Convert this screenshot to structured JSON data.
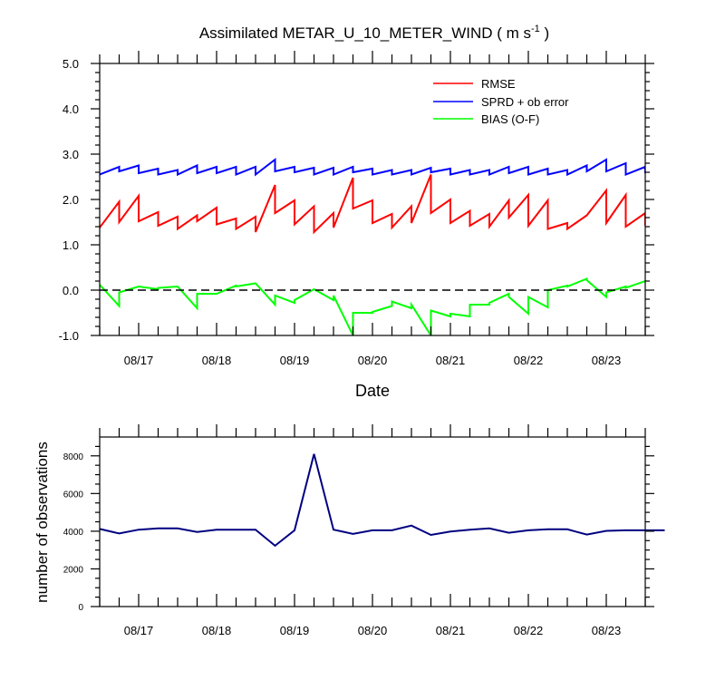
{
  "chart_data": [
    {
      "type": "line",
      "title_main": "Assimilated METAR_U_10_METER_WIND ( m s",
      "title_sup": "-1",
      "title_end": " )",
      "xlabel": "Date",
      "ylabel": "",
      "ylim": [
        -1.0,
        5.0
      ],
      "yticks": [
        "5.0",
        "4.0",
        "3.0",
        "2.0",
        "1.0",
        "0.0",
        "-1.0"
      ],
      "xlim": [
        "08/16 12:00",
        "08/23 18:00"
      ],
      "xtick_labels": [
        "08/17",
        "08/18",
        "08/19",
        "08/20",
        "08/21",
        "08/22",
        "08/23"
      ],
      "x": [
        "08/16 12:00",
        "08/16 18:00",
        "08/17 00:00",
        "08/17 06:00",
        "08/17 12:00",
        "08/17 18:00",
        "08/18 00:00",
        "08/18 06:00",
        "08/18 12:00",
        "08/18 18:00",
        "08/19 00:00",
        "08/19 06:00",
        "08/19 12:00",
        "08/19 18:00",
        "08/20 00:00",
        "08/20 06:00",
        "08/20 12:00",
        "08/20 18:00",
        "08/21 00:00",
        "08/21 06:00",
        "08/21 12:00",
        "08/21 18:00",
        "08/22 00:00",
        "08/22 06:00",
        "08/22 12:00",
        "08/22 18:00",
        "08/23 00:00",
        "08/23 06:00",
        "08/23 12:00"
      ],
      "reference_line": {
        "y": 0.0,
        "style": "dashed"
      },
      "legend_position": "top-right",
      "series": [
        {
          "name": "RMSE",
          "color": "#ff0000",
          "values_start": [
            1.38,
            1.5,
            1.52,
            1.42,
            1.35,
            1.52,
            1.45,
            1.35,
            1.28,
            1.7,
            1.45,
            1.28,
            1.38,
            1.8,
            1.48,
            1.38,
            1.48,
            1.7,
            1.48,
            1.42,
            1.4,
            1.6,
            1.42,
            1.35,
            1.35,
            1.65,
            1.48,
            1.4,
            1.45
          ],
          "values_end": [
            1.95,
            2.08,
            1.72,
            1.62,
            1.65,
            1.82,
            1.58,
            1.62,
            2.32,
            1.98,
            1.85,
            1.7,
            2.48,
            1.98,
            1.68,
            1.85,
            2.55,
            2.0,
            1.75,
            1.68,
            1.98,
            2.1,
            1.98,
            1.48,
            1.65,
            2.2,
            2.1,
            1.7,
            1.62
          ]
        },
        {
          "name": "SPRD + ob error",
          "color": "#0000ff",
          "values_start": [
            2.55,
            2.62,
            2.58,
            2.55,
            2.55,
            2.58,
            2.58,
            2.55,
            2.55,
            2.62,
            2.6,
            2.55,
            2.55,
            2.6,
            2.55,
            2.55,
            2.55,
            2.6,
            2.55,
            2.55,
            2.55,
            2.58,
            2.55,
            2.55,
            2.55,
            2.62,
            2.62,
            2.55,
            2.6
          ],
          "values_end": [
            2.72,
            2.75,
            2.68,
            2.65,
            2.75,
            2.72,
            2.72,
            2.72,
            2.88,
            2.72,
            2.7,
            2.7,
            2.72,
            2.68,
            2.65,
            2.65,
            2.7,
            2.68,
            2.65,
            2.65,
            2.72,
            2.72,
            2.68,
            2.65,
            2.75,
            2.88,
            2.8,
            2.72,
            2.7
          ]
        },
        {
          "name": "BIAS (O-F)",
          "color": "#00ff00",
          "values_start": [
            0.12,
            -0.05,
            0.08,
            0.05,
            0.08,
            -0.08,
            -0.08,
            0.08,
            0.15,
            -0.12,
            -0.22,
            0.02,
            -0.12,
            -0.5,
            -0.48,
            -0.25,
            -0.32,
            -0.45,
            -0.52,
            -0.32,
            -0.28,
            -0.15,
            -0.15,
            0.0,
            0.08,
            0.22,
            -0.05,
            0.05,
            0.18
          ],
          "values_end": [
            -0.35,
            0.08,
            0.02,
            0.08,
            -0.4,
            -0.08,
            0.1,
            0.15,
            -0.32,
            -0.28,
            0.02,
            -0.22,
            -1.0,
            -0.5,
            -0.35,
            -0.4,
            -1.0,
            -0.58,
            -0.58,
            -0.32,
            -0.08,
            -0.52,
            -0.38,
            0.1,
            0.25,
            -0.15,
            0.08,
            0.2,
            0.18
          ]
        }
      ]
    },
    {
      "type": "line",
      "title": "",
      "xlabel": "",
      "ylabel": "number of observations",
      "ylim": [
        0,
        9000
      ],
      "yticks": [
        "8000",
        "6000",
        "4000",
        "2000",
        "0"
      ],
      "xtick_labels": [
        "08/17",
        "08/18",
        "08/19",
        "08/20",
        "08/21",
        "08/22",
        "08/23"
      ],
      "x": [
        "08/16 12:00",
        "08/16 18:00",
        "08/17 00:00",
        "08/17 06:00",
        "08/17 12:00",
        "08/17 18:00",
        "08/18 00:00",
        "08/18 06:00",
        "08/18 12:00",
        "08/18 18:00",
        "08/19 00:00",
        "08/19 06:00",
        "08/19 12:00",
        "08/19 18:00",
        "08/20 00:00",
        "08/20 06:00",
        "08/20 12:00",
        "08/20 18:00",
        "08/21 00:00",
        "08/21 06:00",
        "08/21 12:00",
        "08/21 18:00",
        "08/22 00:00",
        "08/22 06:00",
        "08/22 12:00",
        "08/22 18:00",
        "08/23 00:00",
        "08/23 06:00",
        "08/23 12:00",
        "08/23 18:00"
      ],
      "series": [
        {
          "color": "#000080",
          "values": [
            4120,
            3880,
            4080,
            4150,
            4150,
            3960,
            4080,
            4080,
            4080,
            3230,
            4050,
            8100,
            4080,
            3860,
            4050,
            4050,
            4300,
            3800,
            3980,
            4080,
            4150,
            3920,
            4050,
            4100,
            4100,
            3820,
            4020,
            4050,
            4050,
            4050
          ]
        }
      ]
    }
  ]
}
